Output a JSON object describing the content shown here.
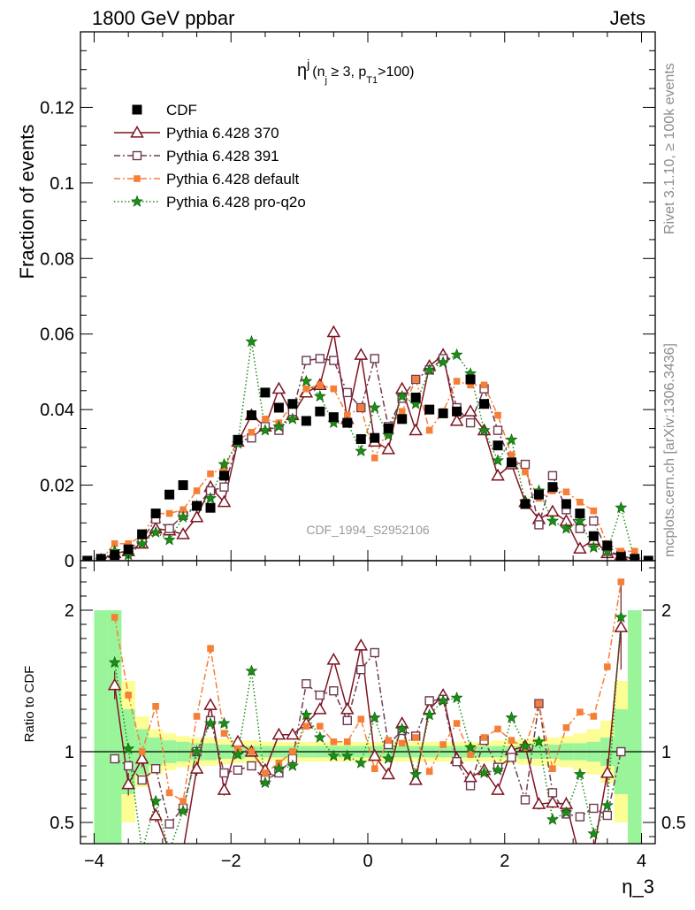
{
  "header": {
    "left": "1800 GeV ppbar",
    "right": "Jets"
  },
  "side_labels": {
    "rivet": "Rivet 3.1.10, ≥ 100k events",
    "mcplots": "mcplots.cern.ch [arXiv:1306.3436]"
  },
  "watermark": "CDF_1994_S2952106",
  "plot_title": {
    "base": "η",
    "sup": "j",
    "cond_a": "(n",
    "cond_a_sub": "j",
    "cond_b": " ≥ 3, p",
    "cond_b_sub": "T1",
    "cond_c": ">100)"
  },
  "chart_data": [
    {
      "type": "scatter",
      "ylabel": "Fraction of events",
      "xlim": [
        -4.2,
        4.2
      ],
      "ylim": [
        0,
        0.14
      ],
      "yticks": [
        0,
        0.02,
        0.04,
        0.06,
        0.08,
        0.1,
        0.12
      ],
      "ytick_labels": [
        "0",
        "0.02",
        "0.04",
        "0.06",
        "0.08",
        "0.1",
        "0.12"
      ],
      "legend_position": "top-left",
      "series": [
        {
          "name": "CDF",
          "color": "#000000",
          "marker": "square-filled",
          "x": [
            -4.1,
            -3.9,
            -3.7,
            -3.5,
            -3.3,
            -3.1,
            -2.9,
            -2.7,
            -2.5,
            -2.3,
            -2.1,
            -1.9,
            -1.7,
            -1.5,
            -1.3,
            -1.1,
            -0.9,
            -0.7,
            -0.5,
            -0.3,
            -0.1,
            0.1,
            0.3,
            0.5,
            0.7,
            0.9,
            1.1,
            1.3,
            1.5,
            1.7,
            1.9,
            2.1,
            2.3,
            2.5,
            2.7,
            2.9,
            3.1,
            3.3,
            3.5,
            3.7,
            3.9,
            4.1
          ],
          "y": [
            0.0,
            0.0005,
            0.0015,
            0.003,
            0.007,
            0.0125,
            0.0175,
            0.02,
            0.0145,
            0.014,
            0.0225,
            0.032,
            0.0385,
            0.0445,
            0.0405,
            0.0415,
            0.037,
            0.0395,
            0.038,
            0.0365,
            0.0322,
            0.0325,
            0.035,
            0.0375,
            0.0432,
            0.04,
            0.039,
            0.0395,
            0.048,
            0.0415,
            0.0305,
            0.026,
            0.015,
            0.0175,
            0.0195,
            0.015,
            0.0125,
            0.0065,
            0.004,
            0.001,
            0.0005,
            0.0
          ]
        },
        {
          "name": "Pythia 6.428 370",
          "color": "#7f1421",
          "marker": "triangle-open",
          "dash": "",
          "x": [
            -3.9,
            -3.7,
            -3.5,
            -3.3,
            -3.1,
            -2.9,
            -2.7,
            -2.5,
            -2.3,
            -2.1,
            -1.9,
            -1.7,
            -1.5,
            -1.3,
            -1.1,
            -0.9,
            -0.7,
            -0.5,
            -0.3,
            -0.1,
            0.1,
            0.3,
            0.5,
            0.7,
            0.9,
            1.1,
            1.3,
            1.5,
            1.7,
            1.9,
            2.1,
            2.3,
            2.5,
            2.7,
            2.9,
            3.1,
            3.3,
            3.5,
            3.7,
            3.9
          ],
          "y": [
            0.0002,
            0.002,
            0.0025,
            0.0045,
            0.0085,
            0.008,
            0.007,
            0.0115,
            0.0195,
            0.0155,
            0.0315,
            0.0385,
            0.0355,
            0.0455,
            0.0385,
            0.0445,
            0.0465,
            0.0605,
            0.0375,
            0.0545,
            0.0315,
            0.0295,
            0.0455,
            0.0345,
            0.0515,
            0.0545,
            0.037,
            0.0395,
            0.0345,
            0.0225,
            0.0255,
            0.0155,
            0.011,
            0.013,
            0.0105,
            0.0032,
            0.0055,
            0.002,
            0.0015,
            0.0002
          ]
        },
        {
          "name": "Pythia 6.428 391",
          "color": "#6e3a52",
          "marker": "square-open",
          "dash": "7,3,2,3",
          "x": [
            -3.9,
            -3.7,
            -3.5,
            -3.3,
            -3.1,
            -2.9,
            -2.7,
            -2.5,
            -2.3,
            -2.1,
            -1.9,
            -1.7,
            -1.5,
            -1.3,
            -1.1,
            -0.9,
            -0.7,
            -0.5,
            -0.3,
            -0.1,
            0.1,
            0.3,
            0.5,
            0.7,
            0.9,
            1.1,
            1.3,
            1.5,
            1.7,
            1.9,
            2.1,
            2.3,
            2.5,
            2.7,
            2.9,
            3.1,
            3.3,
            3.5,
            3.7,
            3.9
          ],
          "y": [
            0.0002,
            0.0015,
            0.003,
            0.0055,
            0.011,
            0.0085,
            0.012,
            0.0145,
            0.0185,
            0.0195,
            0.0315,
            0.0325,
            0.0355,
            0.0345,
            0.0395,
            0.053,
            0.0535,
            0.053,
            0.0445,
            0.0405,
            0.0535,
            0.0355,
            0.043,
            0.048,
            0.0505,
            0.0535,
            0.0405,
            0.0365,
            0.0455,
            0.0345,
            0.026,
            0.0255,
            0.0095,
            0.0225,
            0.0135,
            0.0085,
            0.0105,
            0.0025,
            0.0015,
            0.0002
          ]
        },
        {
          "name": "Pythia 6.428 default",
          "color": "#f57f37",
          "marker": "square-filled-small",
          "dash": "7,3,2,3",
          "x": [
            -3.9,
            -3.7,
            -3.5,
            -3.3,
            -3.1,
            -2.9,
            -2.7,
            -2.5,
            -2.3,
            -2.1,
            -1.9,
            -1.7,
            -1.5,
            -1.3,
            -1.1,
            -0.9,
            -0.7,
            -0.5,
            -0.3,
            -0.1,
            0.1,
            0.3,
            0.5,
            0.7,
            0.9,
            1.1,
            1.3,
            1.5,
            1.7,
            1.9,
            2.1,
            2.3,
            2.5,
            2.7,
            2.9,
            3.1,
            3.3,
            3.5,
            3.7,
            3.9
          ],
          "y": [
            0.0002,
            0.0045,
            0.0045,
            0.0065,
            0.0125,
            0.0125,
            0.0135,
            0.0185,
            0.023,
            0.0245,
            0.032,
            0.034,
            0.0375,
            0.0365,
            0.0415,
            0.0455,
            0.0465,
            0.0455,
            0.0385,
            0.0405,
            0.0272,
            0.0352,
            0.0395,
            0.048,
            0.0345,
            0.0395,
            0.0475,
            0.0465,
            0.0465,
            0.0385,
            0.028,
            0.0235,
            0.0165,
            0.0185,
            0.0182,
            0.0155,
            0.0132,
            0.0045,
            0.0025,
            0.0025
          ]
        },
        {
          "name": "Pythia 6.428 pro-q2o",
          "color": "#1c8d16",
          "marker": "star",
          "dash": "1.5,2.5",
          "x": [
            -3.9,
            -3.7,
            -3.5,
            -3.3,
            -3.1,
            -2.9,
            -2.7,
            -2.5,
            -2.3,
            -2.1,
            -1.9,
            -1.7,
            -1.5,
            -1.3,
            -1.1,
            -0.9,
            -0.7,
            -0.5,
            -0.3,
            -0.1,
            0.1,
            0.3,
            0.5,
            0.7,
            0.9,
            1.1,
            1.3,
            1.5,
            1.7,
            1.9,
            2.1,
            2.3,
            2.5,
            2.7,
            2.9,
            3.1,
            3.3,
            3.5,
            3.7,
            3.9
          ],
          "y": [
            0.0002,
            0.0025,
            0.0015,
            0.0045,
            0.0075,
            0.0055,
            0.0115,
            0.0145,
            0.0165,
            0.0255,
            0.031,
            0.058,
            0.0345,
            0.0355,
            0.0375,
            0.0475,
            0.0435,
            0.0365,
            0.0365,
            0.029,
            0.0405,
            0.0332,
            0.0435,
            0.0415,
            0.0505,
            0.0525,
            0.0545,
            0.0495,
            0.0345,
            0.0265,
            0.032,
            0.0155,
            0.0185,
            0.0105,
            0.0085,
            0.0105,
            0.0035,
            0.0025,
            0.014,
            0.0002
          ]
        }
      ]
    },
    {
      "type": "scatter",
      "ylabel": "Ratio to CDF",
      "xlabel": "η_3",
      "xlim": [
        -4.2,
        4.2
      ],
      "ylim": [
        0.35,
        2.35
      ],
      "xticks": [
        -4,
        -2,
        0,
        2,
        4
      ],
      "xtick_labels": [
        "−4",
        "−2",
        "0",
        "2",
        "4"
      ],
      "yticks": [
        0.5,
        1,
        2
      ],
      "ytick_labels": [
        "0.5",
        "1",
        "2"
      ],
      "bands": {
        "edges": [
          -4.0,
          -3.8,
          -3.6,
          -3.4,
          -3.2,
          -3.0,
          -2.8,
          -2.6,
          -2.4,
          -2.2,
          -2.0,
          -1.8,
          -1.6,
          -1.4,
          -1.2,
          -1.0,
          -0.8,
          -0.6,
          -0.4,
          -0.2,
          0.0,
          0.2,
          0.4,
          0.6,
          0.8,
          1.0,
          1.2,
          1.4,
          1.6,
          1.8,
          2.0,
          2.2,
          2.4,
          2.6,
          2.8,
          3.0,
          3.2,
          3.4,
          3.6,
          3.8,
          4.0
        ],
        "green_half": [
          1.0,
          1.0,
          0.3,
          0.16,
          0.1,
          0.08,
          0.07,
          0.06,
          0.06,
          0.05,
          0.05,
          0.04,
          0.04,
          0.04,
          0.04,
          0.04,
          0.04,
          0.04,
          0.04,
          0.04,
          0.04,
          0.04,
          0.04,
          0.04,
          0.04,
          0.04,
          0.04,
          0.04,
          0.04,
          0.04,
          0.04,
          0.05,
          0.05,
          0.05,
          0.06,
          0.06,
          0.07,
          0.1,
          0.3,
          1.0
        ],
        "yellow_half": [
          1.0,
          1.0,
          0.5,
          0.25,
          0.16,
          0.13,
          0.11,
          0.1,
          0.1,
          0.09,
          0.08,
          0.08,
          0.07,
          0.07,
          0.07,
          0.07,
          0.07,
          0.07,
          0.07,
          0.07,
          0.07,
          0.07,
          0.07,
          0.07,
          0.07,
          0.07,
          0.07,
          0.07,
          0.07,
          0.08,
          0.08,
          0.09,
          0.1,
          0.1,
          0.11,
          0.13,
          0.16,
          0.22,
          0.5,
          1.0
        ]
      },
      "series": [
        {
          "name": "Pythia 6.428 370",
          "x": [
            -3.7,
            -3.5,
            -3.3,
            -3.1,
            -2.9,
            -2.7,
            -2.5,
            -2.3,
            -2.1,
            -1.9,
            -1.7,
            -1.5,
            -1.3,
            -1.1,
            -0.9,
            -0.7,
            -0.5,
            -0.3,
            -0.1,
            0.1,
            0.3,
            0.5,
            0.7,
            0.9,
            1.1,
            1.3,
            1.5,
            1.7,
            1.9,
            2.1,
            2.3,
            2.5,
            2.7,
            2.9,
            3.1,
            3.3,
            3.5,
            3.7
          ],
          "y": [
            1.47,
            0.77,
            0.95,
            0.55,
            0.3,
            0.3,
            0.88,
            1.33,
            0.73,
            1.07,
            1.0,
            0.87,
            1.12,
            1.12,
            1.2,
            1.3,
            1.65,
            1.3,
            1.75,
            0.97,
            0.84,
            1.2,
            0.8,
            1.3,
            1.4,
            0.95,
            0.82,
            0.87,
            0.73,
            1.01,
            1.04,
            0.63,
            0.64,
            0.63,
            0.25,
            0.3,
            0.85,
            1.88
          ],
          "err": [
            0.1,
            0.08,
            0.06,
            0.05,
            0.05,
            0.05,
            0.05,
            0.04,
            0.04,
            0.03,
            0.03,
            0.03,
            0.03,
            0.03,
            0.03,
            0.03,
            0.03,
            0.03,
            0.03,
            0.03,
            0.03,
            0.03,
            0.03,
            0.03,
            0.03,
            0.03,
            0.03,
            0.03,
            0.03,
            0.03,
            0.03,
            0.04,
            0.04,
            0.05,
            0.05,
            0.08,
            0.1,
            0.3
          ]
        },
        {
          "name": "Pythia 6.428 391",
          "x": [
            -3.7,
            -3.5,
            -3.3,
            -3.1,
            -2.9,
            -2.7,
            -2.5,
            -2.3,
            -2.1,
            -1.9,
            -1.7,
            -1.5,
            -1.3,
            -1.1,
            -0.9,
            -0.7,
            -0.5,
            -0.3,
            -0.1,
            0.1,
            0.3,
            0.5,
            0.7,
            0.9,
            1.1,
            1.3,
            1.5,
            1.7,
            1.9,
            2.1,
            2.3,
            2.5,
            2.7,
            2.9,
            3.1,
            3.3,
            3.5,
            3.7
          ],
          "y": [
            0.95,
            0.9,
            0.8,
            0.88,
            0.49,
            0.6,
            1.0,
            1.22,
            0.85,
            0.87,
            0.9,
            0.8,
            0.85,
            0.95,
            1.48,
            1.4,
            1.43,
            1.22,
            1.58,
            1.7,
            1.05,
            1.15,
            1.11,
            1.36,
            1.37,
            0.93,
            0.76,
            1.08,
            0.89,
            0.96,
            0.66,
            1.34,
            0.71,
            0.56,
            0.54,
            0.6,
            0.55,
            1.0
          ]
        },
        {
          "name": "Pythia 6.428 default",
          "x": [
            -3.7,
            -3.5,
            -3.3,
            -3.1,
            -2.9,
            -2.7,
            -2.5,
            -2.3,
            -2.1,
            -1.9,
            -1.7,
            -1.5,
            -1.3,
            -1.1,
            -0.9,
            -0.7,
            -0.5,
            -0.3,
            -0.1,
            0.1,
            0.3,
            0.5,
            0.7,
            0.9,
            1.1,
            1.3,
            1.5,
            1.7,
            1.9,
            2.1,
            2.3,
            2.5,
            2.7,
            2.9,
            3.1,
            3.3,
            3.5,
            3.7
          ],
          "y": [
            1.95,
            1.4,
            1.0,
            1.32,
            0.71,
            0.65,
            1.25,
            1.73,
            1.13,
            1.02,
            1.0,
            0.85,
            0.92,
            1.0,
            1.18,
            1.18,
            1.07,
            1.07,
            1.23,
            0.88,
            1.08,
            1.06,
            1.1,
            0.86,
            1.05,
            1.2,
            0.98,
            1.1,
            1.16,
            1.08,
            1.03,
            1.34,
            0.88,
            1.17,
            1.28,
            1.25,
            1.6,
            2.2
          ]
        },
        {
          "name": "Pythia 6.428 pro-q2o",
          "x": [
            -3.7,
            -3.5,
            -3.3,
            -3.1,
            -2.9,
            -2.7,
            -2.5,
            -2.3,
            -2.1,
            -1.9,
            -1.7,
            -1.5,
            -1.3,
            -1.1,
            -0.9,
            -0.7,
            -0.5,
            -0.3,
            -0.1,
            0.1,
            0.3,
            0.5,
            0.7,
            0.9,
            1.1,
            1.3,
            1.5,
            1.7,
            1.9,
            2.1,
            2.3,
            2.5,
            2.7,
            2.9,
            3.1,
            3.3,
            3.5,
            3.7
          ],
          "y": [
            1.63,
            1.02,
            0.3,
            0.65,
            0.3,
            0.58,
            1.0,
            1.2,
            1.2,
            0.98,
            1.57,
            0.78,
            0.88,
            0.9,
            1.26,
            1.1,
            0.97,
            0.97,
            0.92,
            1.24,
            0.95,
            1.16,
            0.84,
            1.26,
            1.36,
            1.38,
            1.03,
            0.85,
            0.87,
            1.24,
            1.04,
            1.07,
            0.52,
            0.57,
            0.84,
            0.42,
            0.62,
            1.95
          ]
        }
      ]
    }
  ]
}
